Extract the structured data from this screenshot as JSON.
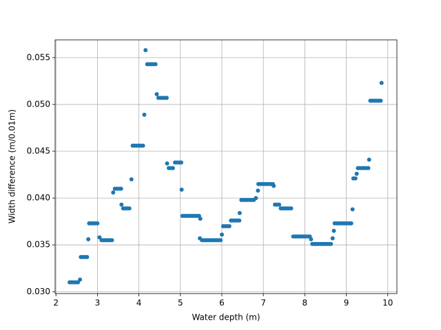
{
  "chart_data": {
    "type": "scatter",
    "xlabel": "Water depth (m)",
    "ylabel": "Width difference (m/0.01m)",
    "color": "#1f77b4",
    "grid": true,
    "xlim": [
      1.98,
      10.22
    ],
    "ylim": [
      0.0298,
      0.0569
    ],
    "xticks": [
      2,
      3,
      4,
      5,
      6,
      7,
      8,
      9,
      10
    ],
    "yticks": [
      {
        "value": 0.03,
        "label": "0.030"
      },
      {
        "value": 0.035,
        "label": "0.035"
      },
      {
        "value": 0.04,
        "label": "0.040"
      },
      {
        "value": 0.045,
        "label": "0.045"
      },
      {
        "value": 0.05,
        "label": "0.050"
      },
      {
        "value": 0.055,
        "label": "0.055"
      }
    ],
    "x": [
      2.33,
      2.38,
      2.43,
      2.48,
      2.53,
      2.58,
      2.6,
      2.65,
      2.7,
      2.75,
      2.78,
      2.8,
      2.85,
      2.9,
      2.95,
      3.0,
      3.05,
      3.1,
      3.15,
      3.2,
      3.25,
      3.3,
      3.35,
      3.38,
      3.42,
      3.47,
      3.52,
      3.57,
      3.58,
      3.62,
      3.67,
      3.72,
      3.77,
      3.82,
      3.85,
      3.9,
      3.95,
      4.0,
      4.05,
      4.1,
      4.13,
      4.16,
      4.2,
      4.25,
      4.3,
      4.35,
      4.4,
      4.43,
      4.47,
      4.52,
      4.57,
      4.62,
      4.67,
      4.68,
      4.72,
      4.77,
      4.82,
      4.87,
      4.92,
      4.97,
      5.02,
      5.03,
      5.05,
      5.1,
      5.15,
      5.2,
      5.25,
      5.3,
      5.35,
      5.4,
      5.45,
      5.48,
      5.47,
      5.52,
      5.57,
      5.62,
      5.67,
      5.72,
      5.77,
      5.82,
      5.87,
      5.92,
      5.97,
      6.0,
      6.03,
      6.08,
      6.13,
      6.18,
      6.22,
      6.27,
      6.32,
      6.37,
      6.42,
      6.43,
      6.47,
      6.52,
      6.57,
      6.62,
      6.67,
      6.72,
      6.77,
      6.82,
      6.87,
      6.88,
      6.93,
      6.98,
      7.03,
      7.08,
      7.13,
      7.18,
      7.23,
      7.25,
      7.28,
      7.33,
      7.38,
      7.42,
      7.47,
      7.52,
      7.57,
      7.62,
      7.67,
      7.72,
      7.77,
      7.82,
      7.87,
      7.92,
      7.97,
      8.02,
      8.07,
      8.12,
      8.15,
      8.18,
      8.23,
      8.28,
      8.33,
      8.38,
      8.43,
      8.48,
      8.53,
      8.58,
      8.63,
      8.67,
      8.7,
      8.72,
      8.77,
      8.82,
      8.87,
      8.92,
      8.97,
      9.02,
      9.07,
      9.12,
      9.15,
      9.17,
      9.22,
      9.25,
      9.28,
      9.33,
      9.38,
      9.43,
      9.48,
      9.53,
      9.55,
      9.58,
      9.63,
      9.68,
      9.73,
      9.78,
      9.83,
      9.85
    ],
    "values": [
      0.031,
      0.031,
      0.031,
      0.031,
      0.031,
      0.0313,
      0.0337,
      0.0337,
      0.0337,
      0.0337,
      0.0356,
      0.0373,
      0.0373,
      0.0373,
      0.0373,
      0.0373,
      0.0358,
      0.0355,
      0.0355,
      0.0355,
      0.0355,
      0.0355,
      0.0355,
      0.0406,
      0.041,
      0.041,
      0.041,
      0.041,
      0.0393,
      0.0389,
      0.0389,
      0.0389,
      0.0389,
      0.042,
      0.0456,
      0.0456,
      0.0456,
      0.0456,
      0.0456,
      0.0456,
      0.0489,
      0.0558,
      0.0543,
      0.0543,
      0.0543,
      0.0543,
      0.0543,
      0.0511,
      0.0507,
      0.0507,
      0.0507,
      0.0507,
      0.0507,
      0.0437,
      0.0432,
      0.0432,
      0.0432,
      0.0438,
      0.0438,
      0.0438,
      0.0438,
      0.0409,
      0.0381,
      0.0381,
      0.0381,
      0.0381,
      0.0381,
      0.0381,
      0.0381,
      0.0381,
      0.0381,
      0.0378,
      0.0357,
      0.0355,
      0.0355,
      0.0355,
      0.0355,
      0.0355,
      0.0355,
      0.0355,
      0.0355,
      0.0355,
      0.0355,
      0.0361,
      0.037,
      0.037,
      0.037,
      0.037,
      0.0376,
      0.0376,
      0.0376,
      0.0376,
      0.0376,
      0.0384,
      0.0398,
      0.0398,
      0.0398,
      0.0398,
      0.0398,
      0.0398,
      0.0398,
      0.04,
      0.0408,
      0.0415,
      0.0415,
      0.0415,
      0.0415,
      0.0415,
      0.0415,
      0.0415,
      0.0415,
      0.0413,
      0.0393,
      0.0393,
      0.0393,
      0.0389,
      0.0389,
      0.0389,
      0.0389,
      0.0389,
      0.0389,
      0.0359,
      0.0359,
      0.0359,
      0.0359,
      0.0359,
      0.0359,
      0.0359,
      0.0359,
      0.0359,
      0.0356,
      0.0351,
      0.0351,
      0.0351,
      0.0351,
      0.0351,
      0.0351,
      0.0351,
      0.0351,
      0.0351,
      0.0351,
      0.0357,
      0.0365,
      0.0373,
      0.0373,
      0.0373,
      0.0373,
      0.0373,
      0.0373,
      0.0373,
      0.0373,
      0.0373,
      0.0388,
      0.0421,
      0.0421,
      0.0426,
      0.0432,
      0.0432,
      0.0432,
      0.0432,
      0.0432,
      0.0432,
      0.0441,
      0.0504,
      0.0504,
      0.0504,
      0.0504,
      0.0504,
      0.0504,
      0.0523
    ]
  }
}
